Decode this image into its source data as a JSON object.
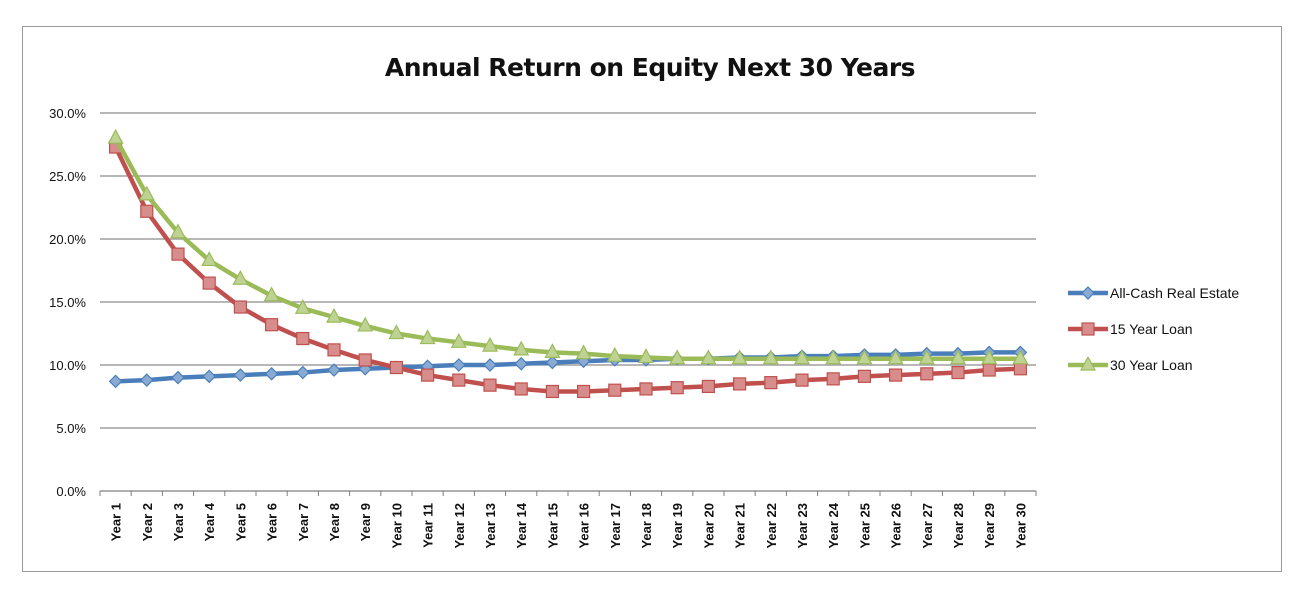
{
  "chart_data": {
    "type": "line",
    "title": "Annual Return on Equity Next 30 Years",
    "xlabel": "",
    "ylabel": "",
    "categories": [
      "Year 1",
      "Year 2",
      "Year 3",
      "Year 4",
      "Year 5",
      "Year 6",
      "Year 7",
      "Year 8",
      "Year 9",
      "Year 10",
      "Year 11",
      "Year 12",
      "Year 13",
      "Year 14",
      "Year 15",
      "Year 16",
      "Year 17",
      "Year 18",
      "Year 19",
      "Year 20",
      "Year 21",
      "Year 22",
      "Year 23",
      "Year 24",
      "Year 25",
      "Year 26",
      "Year 27",
      "Year 28",
      "Year 29",
      "Year 30"
    ],
    "ylim": [
      0,
      30
    ],
    "yticks": [
      "0.0%",
      "5.0%",
      "10.0%",
      "15.0%",
      "20.0%",
      "25.0%",
      "30.0%"
    ],
    "grid": true,
    "legend_position": "right",
    "series": [
      {
        "name": "All-Cash Real Estate",
        "color": "#4a7ebb",
        "marker": "diamond",
        "values": [
          8.7,
          8.8,
          9.0,
          9.1,
          9.2,
          9.3,
          9.4,
          9.6,
          9.7,
          9.8,
          9.9,
          10.0,
          10.0,
          10.1,
          10.2,
          10.3,
          10.4,
          10.4,
          10.5,
          10.5,
          10.6,
          10.6,
          10.7,
          10.7,
          10.8,
          10.8,
          10.9,
          10.9,
          11.0,
          11.0
        ]
      },
      {
        "name": "15 Year Loan",
        "color": "#c0504d",
        "marker": "square",
        "values": [
          27.3,
          22.2,
          18.8,
          16.5,
          14.6,
          13.2,
          12.1,
          11.2,
          10.4,
          9.8,
          9.2,
          8.8,
          8.4,
          8.1,
          7.9,
          7.9,
          8.0,
          8.1,
          8.2,
          8.3,
          8.5,
          8.6,
          8.8,
          8.9,
          9.1,
          9.2,
          9.3,
          9.4,
          9.6,
          9.7
        ]
      },
      {
        "name": "30 Year Loan",
        "color": "#9bbb59",
        "marker": "triangle",
        "values": [
          28.0,
          23.5,
          20.5,
          18.3,
          16.8,
          15.5,
          14.5,
          13.8,
          13.1,
          12.5,
          12.1,
          11.8,
          11.5,
          11.2,
          11.0,
          10.9,
          10.7,
          10.6,
          10.5,
          10.5,
          10.5,
          10.5,
          10.5,
          10.5,
          10.5,
          10.5,
          10.5,
          10.5,
          10.5,
          10.5
        ]
      }
    ]
  }
}
